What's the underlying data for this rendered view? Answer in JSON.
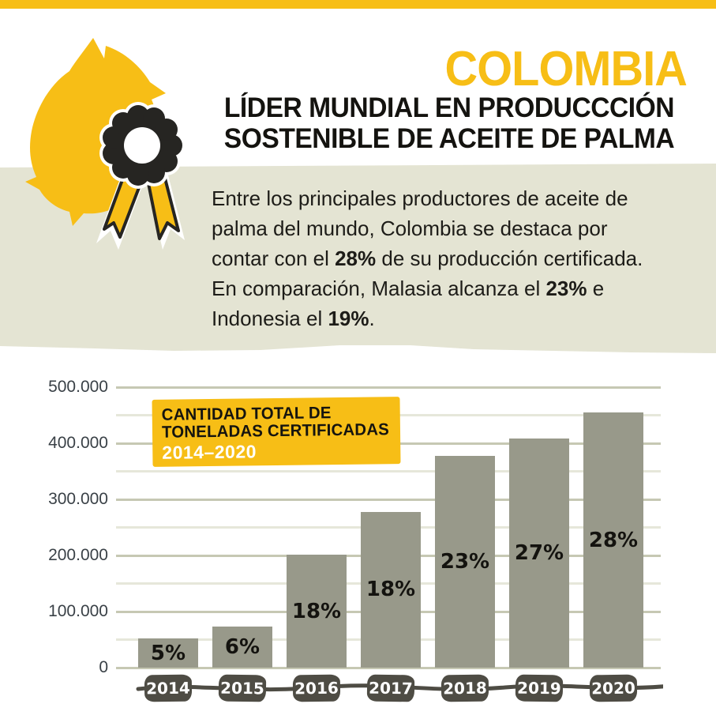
{
  "colors": {
    "accent_yellow": "#f7be16",
    "band_beige": "#e4e4d3",
    "bar_gray": "#98998a",
    "badge_dark": "#4e4c44",
    "grid_major": "#c6c8b3",
    "grid_minor": "#e6e7da",
    "axis_text": "#3a4147"
  },
  "header": {
    "country": "COLOMBIA",
    "subtitle_line1": "LÍDER MUNDIAL EN PRODUCCCIÓN",
    "subtitle_line2": "SOSTENIBLE DE ACEITE DE PALMA"
  },
  "logo": {
    "icon": "palm-fruit-with-award-rosette"
  },
  "intro": {
    "lines": [
      [
        {
          "t": "Entre los principales productores de aceite de"
        }
      ],
      [
        {
          "t": "palma del mundo, Colombia se destaca por"
        }
      ],
      [
        {
          "t": "contar con el "
        },
        {
          "t": "28%",
          "b": true
        },
        {
          "t": " de su producción certificada."
        }
      ],
      [
        {
          "t": "En comparación, Malasia alcanza el "
        },
        {
          "t": "23%",
          "b": true
        },
        {
          "t": " e"
        }
      ],
      [
        {
          "t": "Indonesia el "
        },
        {
          "t": "19%",
          "b": true
        },
        {
          "t": "."
        }
      ]
    ]
  },
  "chart_data": {
    "type": "bar",
    "title": "CANTIDAD TOTAL DE TONELADAS CERTIFICADAS 2014–2020",
    "title_box": {
      "line1": "CANTIDAD TOTAL DE",
      "line2": "TONELADAS CERTIFICADAS",
      "range": "2014–2020"
    },
    "categories": [
      "2014",
      "2015",
      "2016",
      "2017",
      "2018",
      "2019",
      "2020"
    ],
    "values": [
      52000,
      73000,
      201000,
      278000,
      378000,
      408000,
      455000
    ],
    "bar_labels": [
      "5%",
      "6%",
      "18%",
      "18%",
      "23%",
      "27%",
      "28%"
    ],
    "xlabel": "",
    "ylabel": "",
    "ylim": [
      0,
      500000
    ],
    "y_tick_step": 100000,
    "gridline_step": 50000,
    "y_tick_labels": [
      "0",
      "100.000",
      "200.000",
      "300.000",
      "400.000",
      "500.000"
    ],
    "grid": "on",
    "legend": "none"
  }
}
